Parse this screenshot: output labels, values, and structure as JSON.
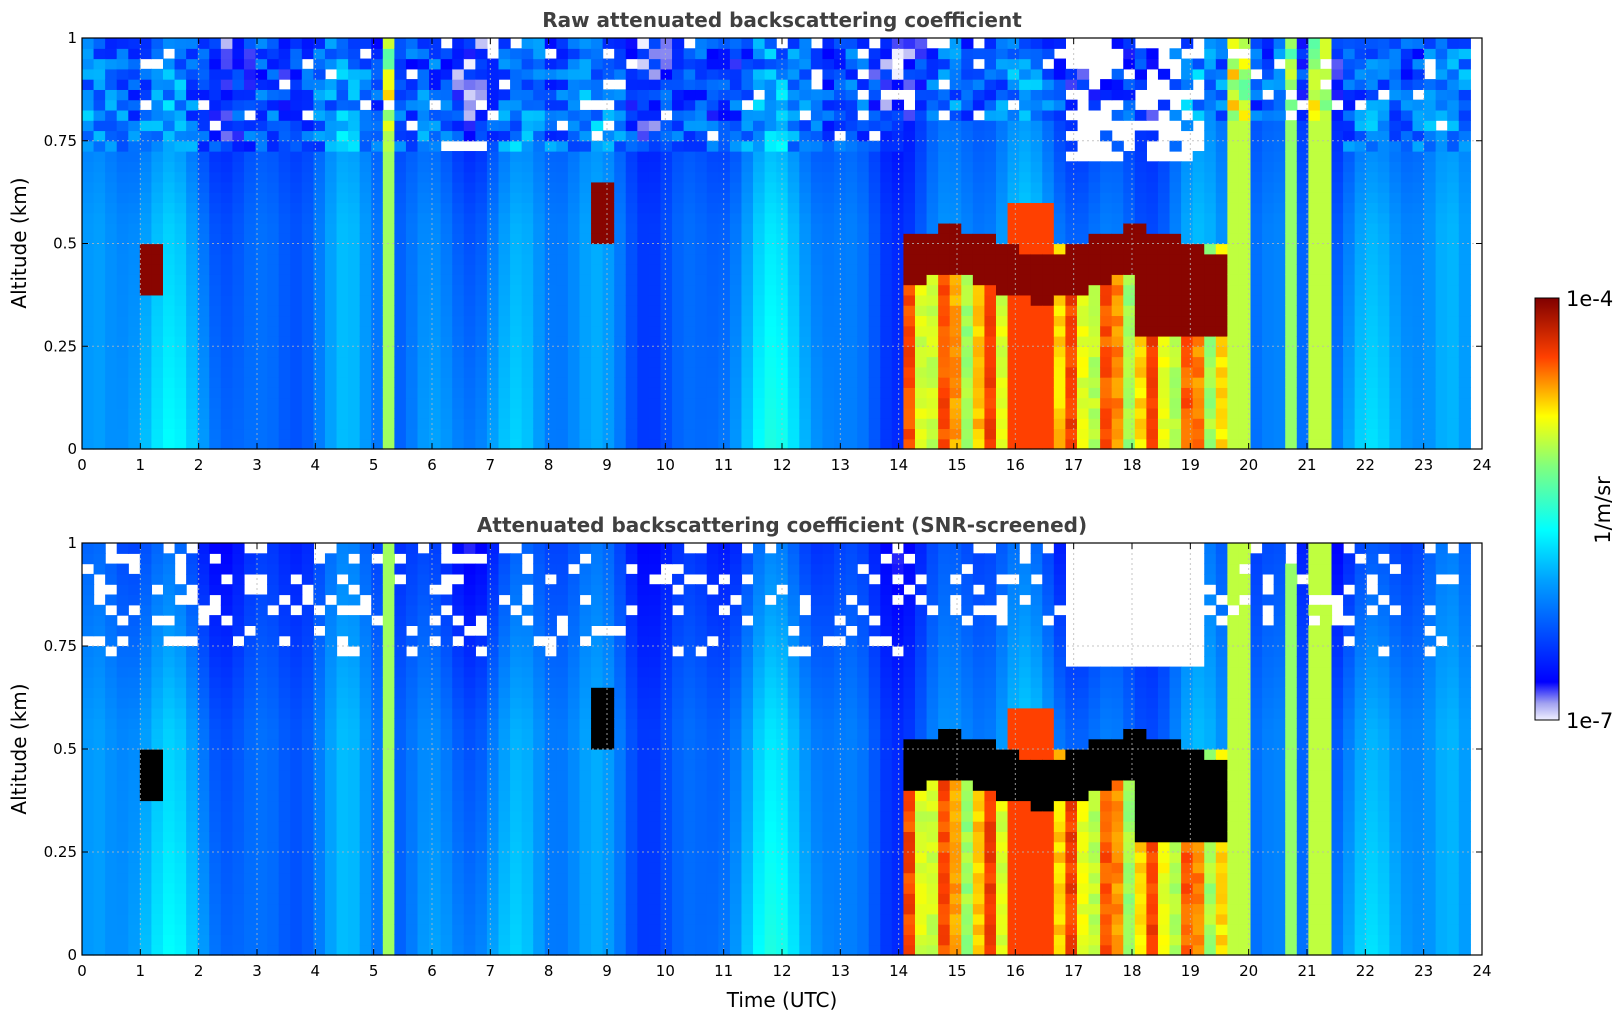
{
  "chart_data": [
    {
      "type": "heatmap",
      "title": "Raw attenuated backscattering coefficient",
      "xlabel": "",
      "ylabel": "Altitude (km)",
      "xlim": [
        0,
        24
      ],
      "ylim": [
        0,
        1
      ],
      "x_ticks": [
        "0",
        "1",
        "2",
        "3",
        "4",
        "5",
        "6",
        "7",
        "8",
        "9",
        "10",
        "11",
        "12",
        "13",
        "14",
        "15",
        "16",
        "17",
        "18",
        "19",
        "20",
        "21",
        "22",
        "23",
        "24"
      ],
      "y_ticks": [
        "0",
        "0.25",
        "0.5",
        "0.75",
        "1"
      ],
      "grid": true,
      "colormap": "jet",
      "color_scale": "log",
      "data_extent_hours": [
        0,
        23.8
      ],
      "features": [
        {
          "time_range": [
            5.2,
            5.35
          ],
          "altitude_range": [
            0,
            1
          ],
          "level": "yellow-green"
        },
        {
          "time_range": [
            14.0,
            19.6
          ],
          "altitude_range": [
            0,
            0.5
          ],
          "level": "orange-red"
        },
        {
          "time_range": [
            15.8,
            16.6
          ],
          "altitude_range": [
            0,
            0.6
          ],
          "level": "red"
        },
        {
          "time_range": [
            19.7,
            20.0
          ],
          "altitude_range": [
            0,
            1
          ],
          "level": "yellow"
        },
        {
          "time_range": [
            21.1,
            21.5
          ],
          "altitude_range": [
            0,
            1
          ],
          "level": "yellow"
        },
        {
          "time_range": [
            18.1,
            19.6
          ],
          "altitude_range": [
            0.28,
            0.45
          ],
          "level": "dark red"
        },
        {
          "time_range": [
            8.8,
            9.2
          ],
          "altitude_range": [
            0.5,
            0.65
          ],
          "level": "dark red"
        },
        {
          "time_range": [
            0.9,
            1.3
          ],
          "altitude_range": [
            0.38,
            0.5
          ],
          "level": "dark red"
        }
      ]
    },
    {
      "type": "heatmap",
      "title": "Attenuated backscattering coefficient (SNR-screened)",
      "xlabel": "Time (UTC)",
      "ylabel": "Altitude (km)",
      "xlim": [
        0,
        24
      ],
      "ylim": [
        0,
        1
      ],
      "x_ticks": [
        "0",
        "1",
        "2",
        "3",
        "4",
        "5",
        "6",
        "7",
        "8",
        "9",
        "10",
        "11",
        "12",
        "13",
        "14",
        "15",
        "16",
        "17",
        "18",
        "19",
        "20",
        "21",
        "22",
        "23",
        "24"
      ],
      "y_ticks": [
        "0",
        "0.25",
        "0.5",
        "0.75",
        "1"
      ],
      "grid": true,
      "colormap": "jet",
      "color_scale": "log",
      "data_extent_hours": [
        0,
        23.8
      ],
      "features": [
        {
          "time_range": [
            5.2,
            5.35
          ],
          "altitude_range": [
            0,
            1
          ],
          "level": "yellow-green"
        },
        {
          "time_range": [
            14.0,
            19.6
          ],
          "altitude_range": [
            0,
            0.5
          ],
          "level": "orange-red"
        },
        {
          "time_range": [
            18.1,
            19.6
          ],
          "altitude_range": [
            0.25,
            0.45
          ],
          "level": "black (screened)"
        },
        {
          "time_range": [
            8.8,
            9.3
          ],
          "altitude_range": [
            0.5,
            0.62
          ],
          "level": "black (screened)"
        }
      ]
    }
  ],
  "colorbar": {
    "label": "1/m/sr",
    "max_label": "1e-4",
    "min_label": "1e-7",
    "vmin": 1e-07,
    "vmax": 0.0001,
    "scale": "log"
  }
}
